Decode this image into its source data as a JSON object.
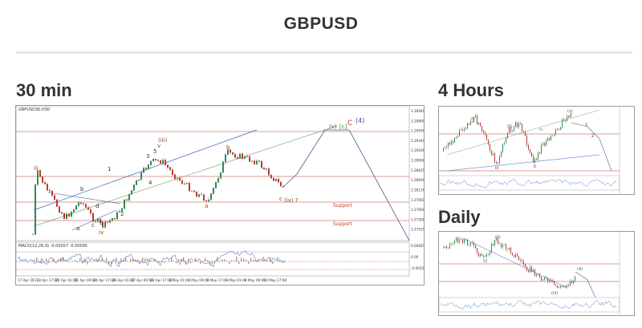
{
  "page_title": "GBPUSD",
  "sections": {
    "m30": "30 min",
    "h4": "4 Hours",
    "daily": "Daily"
  },
  "m30_chart": {
    "symbol_label": "GBPUSD30,H30",
    "indicator_label": "MACD(12,26,9) -0.00057 -0.00095",
    "price_ticks": [
      "1.30040",
      "1.29800",
      "1.29560",
      "1.29440",
      "1.29200",
      "1.28960",
      "1.28835",
      "1.28600",
      "1.28130",
      "1.27850",
      "1.27600",
      "1.27300",
      "1.27025"
    ],
    "indicator_ticks": [
      "0.00661",
      "0.00",
      "-0.00255"
    ],
    "time_ticks": [
      "17 Apr 2017",
      "18 Apr 17:00",
      "20 Apr 01:00",
      "21 Apr 09:00",
      "24 Apr 17:00",
      "26 Apr 01:00",
      "27 Apr 09:00",
      "28 Apr 17:00",
      "2 May 01:00",
      "3 May 09:00",
      "4 May 17:00",
      "8 May 01:00",
      "9 May 09:00",
      "10 May 17:00"
    ],
    "labels": {
      "iii": "iii",
      "iv": "iv",
      "a_low": "a",
      "b_low": "b",
      "c_low": "c",
      "d": "d",
      "e": "e",
      "w1": "1",
      "w2": "2",
      "w3": "3",
      "w4": "4",
      "w5": "5",
      "v": "v",
      "iii_paren": "(iii)",
      "a_mid": "a",
      "b_top": "b",
      "c_end": "c",
      "iv_paren": "(iv) ?",
      "v_paren": "(v)",
      "c_bracket": "[c]",
      "c_big": "C",
      "four_paren": "(4)",
      "support1": "Support",
      "support2": "Support"
    }
  },
  "h4_chart": {
    "labels": {
      "a": "a",
      "b": "b",
      "ii": "(ii)",
      "iii": "iii",
      "iv": "iv",
      "v": "(v)",
      "one": "1",
      "two": "2"
    }
  },
  "daily_chart": {
    "labels": {
      "ii": "(ii)",
      "i": "(i)",
      "iv": "(4)",
      "iii": "(iii)"
    }
  },
  "colors": {
    "candle_up": "#2e8b57",
    "candle_down": "#c0392b",
    "trend_blue": "#3a5fbf",
    "trend_green": "#7aa37a",
    "red_line": "#c0392b",
    "projection": "#4a5a8a",
    "indicator_line": "#4a86c8",
    "indicator_fill": "#a35050"
  }
}
